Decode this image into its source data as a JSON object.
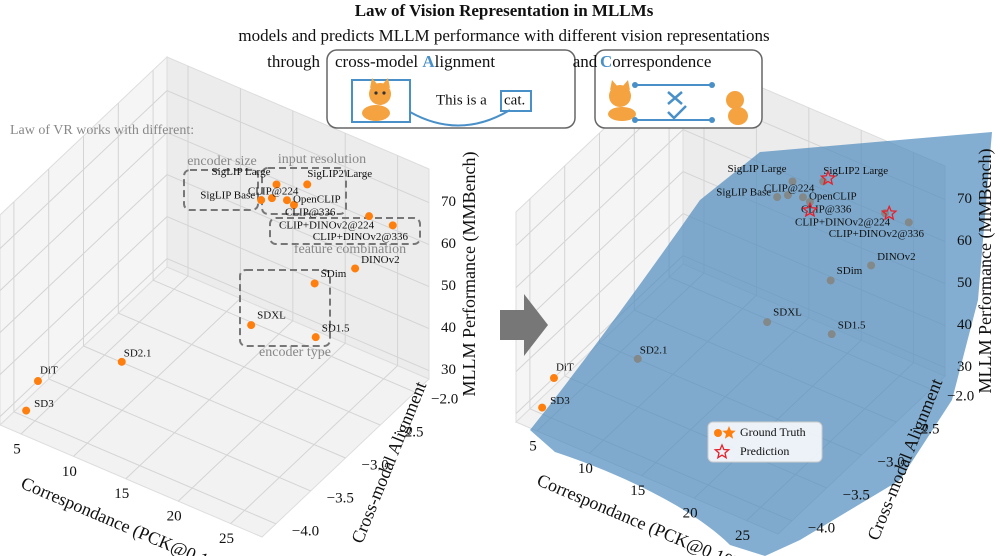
{
  "header": {
    "title": "Law of Vision Representation in MLLMs",
    "subtitle": "models and predicts MLLM performance with different vision representations",
    "through": "through",
    "alignment_pre": "cross-model ",
    "alignment_initial": "A",
    "alignment_rest": "lignment",
    "and": "and",
    "correspondence_initial": "C",
    "correspondence_rest": "orrespondence",
    "caption_pre": "This is a",
    "caption_word": "cat."
  },
  "chart_data": [
    {
      "type": "scatter3d",
      "point_labels": [
        "SD3",
        "DiT",
        "SD2.1",
        "SDXL",
        "SD1.5",
        "SDim",
        "DINOv2",
        "CLIP+DINOv2@336",
        "CLIP+DINOv2@224",
        "CLIP@336",
        "OpenCLIP",
        "CLIP@224",
        "SigLIP Base",
        "SigLIP Large",
        "SigLIP2 Large"
      ],
      "x": [
        4.3,
        3.9,
        10.7,
        18.4,
        22.9,
        22.6,
        24.8,
        27.2,
        25.0,
        18.7,
        18.5,
        16.2,
        16.5,
        17.3,
        19.9
      ],
      "y": [
        -4.02,
        -3.79,
        -3.61,
        -2.91,
        -2.66,
        -2.63,
        -2.38,
        -2.2,
        -2.21,
        -2.34,
        -2.41,
        -2.28,
        -2.48,
        -2.38,
        -2.33
      ],
      "z": [
        30,
        33,
        42,
        48,
        46,
        58,
        60,
        70,
        70,
        68,
        70,
        66,
        69,
        72,
        74
      ],
      "color": "#ff7f0e",
      "xlabel": "Correspondance (PCK@0.10)",
      "ylabel": "Cross-modal Alignment",
      "zlabel": "MLLM Performance (MMBench)",
      "xlim": [
        3,
        28
      ],
      "ylim": [
        -4.2,
        -1.8
      ],
      "zlim": [
        28,
        78
      ],
      "xticks": [
        5,
        10,
        15,
        20,
        25
      ],
      "yticks": [
        {
          "value": -4,
          "label": "−4.0"
        },
        {
          "value": -3.5,
          "label": "−3.5"
        },
        {
          "value": -3,
          "label": "−3.0"
        },
        {
          "value": -2.5,
          "label": "−2.5"
        },
        {
          "value": -2,
          "label": "−2.0"
        }
      ],
      "zticks": [
        30,
        40,
        50,
        60,
        70
      ],
      "grid": true,
      "annotations": [
        "Law of VR works with different:",
        "encoder size",
        "input resolution",
        "feature combination",
        "encoder type"
      ]
    },
    {
      "type": "scatter3d",
      "series": [
        {
          "name": "Ground Truth",
          "color": "#ff7f0e",
          "point_labels": [
            "SD3",
            "DiT",
            "SD2.1",
            "SDXL",
            "SD1.5",
            "SDim",
            "DINOv2",
            "CLIP+DINOv2@336",
            "CLIP+DINOv2@224",
            "CLIP@336",
            "OpenCLIP",
            "CLIP@224",
            "SigLIP Base",
            "SigLIP Large",
            "SigLIP2 Large"
          ],
          "x": [
            4.3,
            3.9,
            10.7,
            18.4,
            22.9,
            22.6,
            24.8,
            27.2,
            25.0,
            18.7,
            18.5,
            16.2,
            16.5,
            17.3,
            19.9
          ],
          "y": [
            -4.02,
            -3.79,
            -3.61,
            -2.91,
            -2.66,
            -2.63,
            -2.38,
            -2.2,
            -2.21,
            -2.34,
            -2.41,
            -2.28,
            -2.48,
            -2.38,
            -2.33
          ],
          "z": [
            30,
            33,
            42,
            48,
            46,
            58,
            60,
            70,
            70,
            68,
            70,
            66,
            69,
            72,
            74
          ]
        },
        {
          "name": "Prediction",
          "color": "#e8202a",
          "x": [
            20.3,
            18.7,
            25.0
          ],
          "y": [
            -2.32,
            -2.34,
            -2.15
          ],
          "z": [
            75,
            66,
            69
          ]
        }
      ],
      "xlabel": "Correspondance (PCK@0.10)",
      "ylabel": "Cross-modal Alignment",
      "zlabel": "MLLM Performance (MMBench)",
      "xlim": [
        3,
        28
      ],
      "ylim": [
        -4.2,
        -1.8
      ],
      "zlim": [
        28,
        78
      ],
      "xticks": [
        5,
        10,
        15,
        20,
        25
      ],
      "yticks": [
        {
          "value": -4,
          "label": "−4.0"
        },
        {
          "value": -3.5,
          "label": "−3.5"
        },
        {
          "value": -3,
          "label": "−3.0"
        },
        {
          "value": -2.5,
          "label": "−2.5"
        },
        {
          "value": -2,
          "label": "−2.0"
        }
      ],
      "zticks": [
        30,
        40,
        50,
        60,
        70
      ],
      "grid": true,
      "legend": "lower center"
    }
  ]
}
